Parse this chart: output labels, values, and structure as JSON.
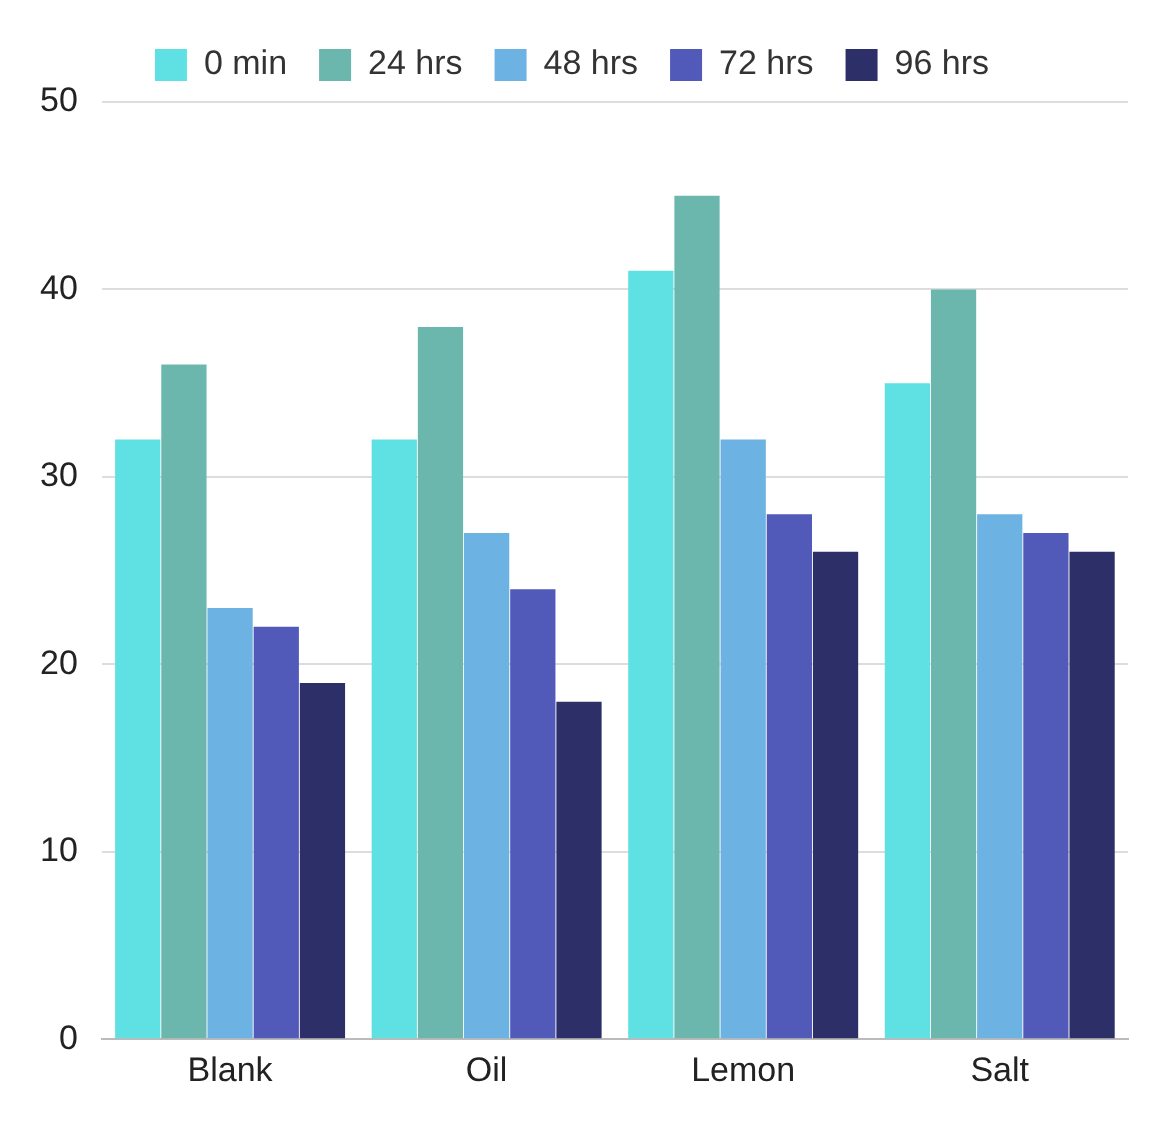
{
  "chart_data": {
    "type": "bar",
    "categories": [
      "Blank",
      "Oil",
      "Lemon",
      "Salt"
    ],
    "series": [
      {
        "name": "0 min",
        "color": "#5fe0e2",
        "values": [
          32,
          32,
          41,
          35
        ]
      },
      {
        "name": "24 hrs",
        "color": "#6bb7ae",
        "values": [
          36,
          38,
          45,
          40
        ]
      },
      {
        "name": "48 hrs",
        "color": "#6cb2e3",
        "values": [
          23,
          27,
          32,
          28
        ]
      },
      {
        "name": "72 hrs",
        "color": "#5159b9",
        "values": [
          22,
          24,
          28,
          27
        ]
      },
      {
        "name": "96 hrs",
        "color": "#2c2f68",
        "values": [
          19,
          18,
          26,
          26
        ]
      }
    ],
    "ylim": [
      0,
      50
    ],
    "yticks": [
      0,
      10,
      20,
      30,
      40,
      50
    ],
    "grid": "y",
    "legend": "top"
  }
}
